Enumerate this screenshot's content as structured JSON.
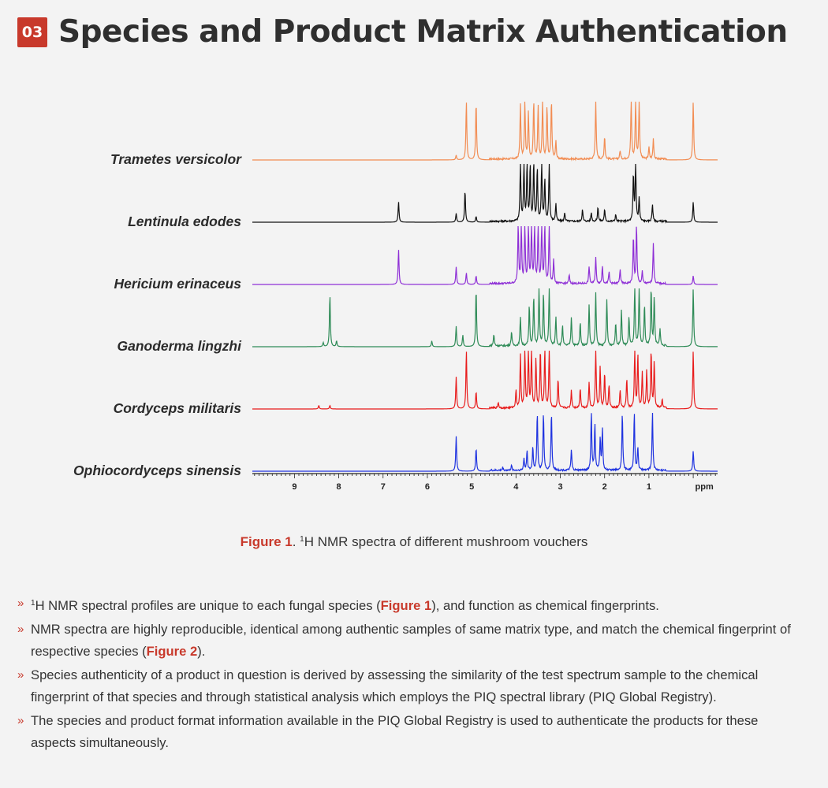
{
  "header": {
    "badge": "03",
    "title": "Species and Product Matrix Authentication"
  },
  "figure": {
    "caption_ref": "Figure 1",
    "caption_sep": ". ",
    "caption_sup": "1",
    "caption_text": "H NMR spectra of different mushroom vouchers"
  },
  "chart_data": {
    "type": "line",
    "title": "",
    "xlabel": "ppm",
    "xlim": [
      9.95,
      -0.55
    ],
    "x_reversed": true,
    "x_ticks": [
      "9",
      "8",
      "7",
      "6",
      "5",
      "4",
      "3",
      "2",
      "1"
    ],
    "x_tick_values": [
      9,
      8,
      7,
      6,
      5,
      4,
      3,
      2,
      1
    ],
    "x_unit_label": "ppm",
    "series": [
      {
        "name": "Trametes versicolor",
        "color": "#f28c52",
        "peaks": [
          [
            5.35,
            0.08
          ],
          [
            5.12,
            1.0
          ],
          [
            4.9,
            1.0
          ],
          [
            3.9,
            0.95
          ],
          [
            3.8,
            1.0
          ],
          [
            3.72,
            0.8
          ],
          [
            3.6,
            1.0
          ],
          [
            3.5,
            0.9
          ],
          [
            3.4,
            1.0
          ],
          [
            3.3,
            0.9
          ],
          [
            3.2,
            1.0
          ],
          [
            3.1,
            0.3
          ],
          [
            2.2,
            1.0
          ],
          [
            2.0,
            0.4
          ],
          [
            1.65,
            0.15
          ],
          [
            1.4,
            1.0
          ],
          [
            1.3,
            1.0
          ],
          [
            1.22,
            1.0
          ],
          [
            1.0,
            0.2
          ],
          [
            0.9,
            0.35
          ],
          [
            0.0,
            1.0
          ]
        ]
      },
      {
        "name": "Lentinula edodes",
        "color": "#111111",
        "peaks": [
          [
            6.65,
            0.35
          ],
          [
            5.35,
            0.15
          ],
          [
            5.15,
            0.55
          ],
          [
            4.9,
            0.1
          ],
          [
            3.9,
            1.0
          ],
          [
            3.82,
            1.0
          ],
          [
            3.75,
            1.0
          ],
          [
            3.68,
            0.95
          ],
          [
            3.6,
            1.0
          ],
          [
            3.52,
            0.9
          ],
          [
            3.42,
            1.0
          ],
          [
            3.35,
            0.7
          ],
          [
            3.25,
            1.0
          ],
          [
            3.1,
            0.3
          ],
          [
            2.9,
            0.15
          ],
          [
            2.5,
            0.2
          ],
          [
            2.3,
            0.15
          ],
          [
            2.15,
            0.25
          ],
          [
            2.0,
            0.2
          ],
          [
            1.75,
            0.12
          ],
          [
            1.35,
            0.8
          ],
          [
            1.3,
            1.0
          ],
          [
            1.22,
            0.4
          ],
          [
            0.92,
            0.3
          ],
          [
            0.0,
            0.35
          ]
        ]
      },
      {
        "name": "Hericium erinaceus",
        "color": "#8e2fd6",
        "peaks": [
          [
            6.65,
            0.6
          ],
          [
            5.35,
            0.3
          ],
          [
            5.12,
            0.2
          ],
          [
            4.9,
            0.15
          ],
          [
            3.95,
            1.0
          ],
          [
            3.88,
            1.0
          ],
          [
            3.8,
            1.0
          ],
          [
            3.72,
            1.0
          ],
          [
            3.65,
            1.0
          ],
          [
            3.58,
            1.0
          ],
          [
            3.5,
            1.0
          ],
          [
            3.42,
            1.0
          ],
          [
            3.35,
            1.0
          ],
          [
            3.25,
            1.0
          ],
          [
            3.15,
            0.4
          ],
          [
            2.8,
            0.15
          ],
          [
            2.35,
            0.3
          ],
          [
            2.2,
            0.45
          ],
          [
            2.05,
            0.3
          ],
          [
            1.9,
            0.2
          ],
          [
            1.65,
            0.25
          ],
          [
            1.35,
            0.8
          ],
          [
            1.28,
            1.0
          ],
          [
            1.15,
            0.2
          ],
          [
            0.9,
            0.7
          ],
          [
            0.0,
            0.15
          ]
        ]
      },
      {
        "name": "Ganoderma lingzhi",
        "color": "#2e8b57",
        "peaks": [
          [
            8.35,
            0.07
          ],
          [
            8.2,
            0.9
          ],
          [
            8.05,
            0.1
          ],
          [
            5.9,
            0.1
          ],
          [
            5.35,
            0.35
          ],
          [
            5.2,
            0.2
          ],
          [
            4.9,
            1.0
          ],
          [
            4.5,
            0.2
          ],
          [
            4.1,
            0.25
          ],
          [
            3.9,
            0.5
          ],
          [
            3.7,
            0.7
          ],
          [
            3.6,
            0.85
          ],
          [
            3.48,
            1.0
          ],
          [
            3.38,
            0.9
          ],
          [
            3.25,
            1.0
          ],
          [
            3.1,
            0.5
          ],
          [
            2.95,
            0.35
          ],
          [
            2.75,
            0.5
          ],
          [
            2.55,
            0.4
          ],
          [
            2.35,
            0.7
          ],
          [
            2.2,
            0.9
          ],
          [
            1.95,
            0.8
          ],
          [
            1.75,
            0.4
          ],
          [
            1.62,
            0.6
          ],
          [
            1.45,
            0.5
          ],
          [
            1.32,
            1.0
          ],
          [
            1.22,
            1.0
          ],
          [
            1.1,
            0.7
          ],
          [
            0.95,
            1.0
          ],
          [
            0.88,
            0.85
          ],
          [
            0.75,
            0.3
          ],
          [
            0.0,
            1.0
          ]
        ]
      },
      {
        "name": "Cordyceps militaris",
        "color": "#e81c1c",
        "peaks": [
          [
            8.45,
            0.06
          ],
          [
            8.2,
            0.06
          ],
          [
            5.35,
            0.55
          ],
          [
            5.12,
            1.0
          ],
          [
            4.9,
            0.3
          ],
          [
            4.4,
            0.1
          ],
          [
            4.0,
            0.3
          ],
          [
            3.9,
            0.9
          ],
          [
            3.8,
            1.0
          ],
          [
            3.72,
            1.0
          ],
          [
            3.65,
            1.0
          ],
          [
            3.55,
            0.85
          ],
          [
            3.45,
            1.0
          ],
          [
            3.35,
            1.0
          ],
          [
            3.25,
            1.0
          ],
          [
            3.05,
            0.5
          ],
          [
            2.75,
            0.3
          ],
          [
            2.55,
            0.35
          ],
          [
            2.35,
            0.45
          ],
          [
            2.2,
            1.0
          ],
          [
            2.1,
            0.7
          ],
          [
            2.0,
            0.6
          ],
          [
            1.9,
            0.4
          ],
          [
            1.65,
            0.3
          ],
          [
            1.5,
            0.5
          ],
          [
            1.32,
            1.0
          ],
          [
            1.25,
            0.9
          ],
          [
            1.15,
            0.6
          ],
          [
            1.05,
            0.65
          ],
          [
            0.95,
            1.0
          ],
          [
            0.88,
            0.8
          ],
          [
            0.7,
            0.15
          ],
          [
            0.0,
            1.0
          ]
        ]
      },
      {
        "name": "Ophiocordyceps sinensis",
        "color": "#1f33e0",
        "peaks": [
          [
            5.35,
            0.6
          ],
          [
            4.9,
            0.4
          ],
          [
            4.3,
            0.05
          ],
          [
            4.1,
            0.08
          ],
          [
            3.82,
            0.2
          ],
          [
            3.75,
            0.35
          ],
          [
            3.62,
            0.4
          ],
          [
            3.52,
            1.0
          ],
          [
            3.38,
            1.0
          ],
          [
            3.2,
            1.0
          ],
          [
            2.75,
            0.35
          ],
          [
            2.3,
            1.0
          ],
          [
            2.22,
            0.8
          ],
          [
            2.1,
            0.55
          ],
          [
            2.05,
            0.7
          ],
          [
            1.6,
            1.0
          ],
          [
            1.33,
            1.0
          ],
          [
            1.25,
            0.4
          ],
          [
            0.92,
            1.0
          ],
          [
            0.0,
            0.35
          ]
        ]
      }
    ]
  },
  "bullets": [
    {
      "sup": "1",
      "a": "H NMR spectral profiles are unique to each fungal species (",
      "ref": "Figure 1",
      "b": "), and function as chemical fingerprints."
    },
    {
      "a": "NMR spectra are highly reproducible, identical among authentic samples of same matrix type, and match the chemical fingerprint of respective species (",
      "ref": "Figure 2",
      "b": ")."
    },
    {
      "a": "Species authenticity of a product in question is derived by assessing the similarity of the test spectrum sample to the chemical fingerprint of that species and through statistical analysis which employs the PIQ spectral library (PIQ Global Registry)."
    },
    {
      "a": "The species and product format information available in the PIQ Global Registry is used to authenticate the products for these aspects simultaneously."
    }
  ]
}
